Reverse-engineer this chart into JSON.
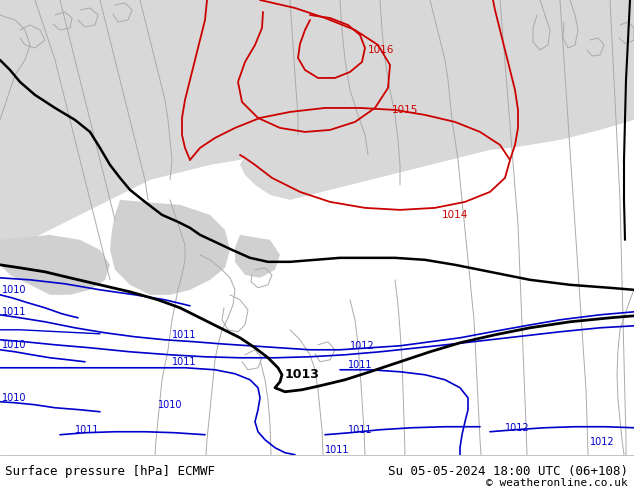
{
  "title_left": "Surface pressure [hPa] ECMWF",
  "title_right": "Su 05-05-2024 18:00 UTC (06+108)",
  "copyright": "© weatheronline.co.uk",
  "bg_green": "#c8f0a0",
  "bg_gray": "#d8d8d8",
  "coast_color": "#aaaaaa",
  "border_black": "#000000",
  "red_isobar": "#cc0000",
  "blue_isobar": "#0000cc",
  "black_isobar": "#000000",
  "footer_bg": "#ffffff",
  "footer_text_color": "#000000",
  "title_fontsize": 9,
  "copyright_fontsize": 8,
  "label_fontsize": 7
}
